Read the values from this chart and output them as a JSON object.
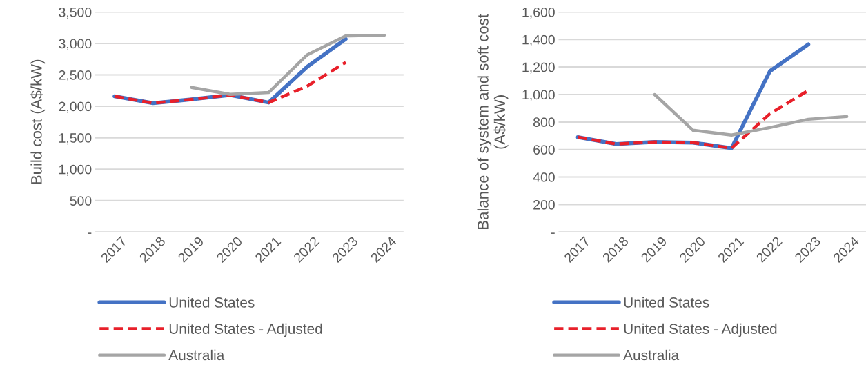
{
  "chart_data": [
    {
      "type": "line",
      "ylabel": "Build cost (A$/kW)",
      "categories": [
        "2017",
        "2018",
        "2019",
        "2020",
        "2021",
        "2022",
        "2023",
        "2024"
      ],
      "ylim": [
        0,
        3500
      ],
      "yticks": [
        {
          "value": 0,
          "label": "-"
        },
        {
          "value": 500,
          "label": "500"
        },
        {
          "value": 1000,
          "label": "1,000"
        },
        {
          "value": 1500,
          "label": "1,500"
        },
        {
          "value": 2000,
          "label": "2,000"
        },
        {
          "value": 2500,
          "label": "2,500"
        },
        {
          "value": 3000,
          "label": "3,000"
        },
        {
          "value": 3500,
          "label": "3,500"
        }
      ],
      "grid": "y",
      "legend": "bottom",
      "marker": "none",
      "series": [
        {
          "name": "United States",
          "color": "#4472c4",
          "line_style": "solid",
          "values": [
            2160,
            2050,
            2110,
            2180,
            2060,
            2630,
            3070,
            null
          ]
        },
        {
          "name": "United States - Adjusted",
          "color": "#e8202a",
          "line_style": "dashed",
          "values": [
            2160,
            2050,
            2110,
            2180,
            2060,
            2320,
            2700,
            null
          ]
        },
        {
          "name": "Australia",
          "color": "#a5a5a5",
          "line_style": "solid",
          "values": [
            null,
            null,
            2300,
            2190,
            2220,
            2820,
            3120,
            3130
          ]
        }
      ]
    },
    {
      "type": "line",
      "ylabel": "Balance of system and soft cost\n(A$/kW)",
      "categories": [
        "2017",
        "2018",
        "2019",
        "2020",
        "2021",
        "2022",
        "2023",
        "2024"
      ],
      "ylim": [
        0,
        1600
      ],
      "yticks": [
        {
          "value": 0,
          "label": "-"
        },
        200,
        400,
        600,
        800,
        {
          "value": 1000,
          "label": "1,000"
        },
        {
          "value": 1200,
          "label": "1,200"
        },
        {
          "value": 1400,
          "label": "1,400"
        },
        {
          "value": 1600,
          "label": "1,600"
        }
      ],
      "grid": "y",
      "legend": "bottom",
      "marker": "none",
      "series": [
        {
          "name": "United States",
          "color": "#4472c4",
          "line_style": "solid",
          "values": [
            690,
            640,
            655,
            650,
            610,
            1170,
            1365,
            null
          ]
        },
        {
          "name": "United States - Adjusted",
          "color": "#e8202a",
          "line_style": "dashed",
          "values": [
            690,
            640,
            655,
            650,
            610,
            860,
            1030,
            null
          ]
        },
        {
          "name": "Australia",
          "color": "#a5a5a5",
          "line_style": "solid",
          "values": [
            null,
            null,
            1000,
            740,
            705,
            760,
            820,
            840
          ]
        }
      ]
    }
  ]
}
